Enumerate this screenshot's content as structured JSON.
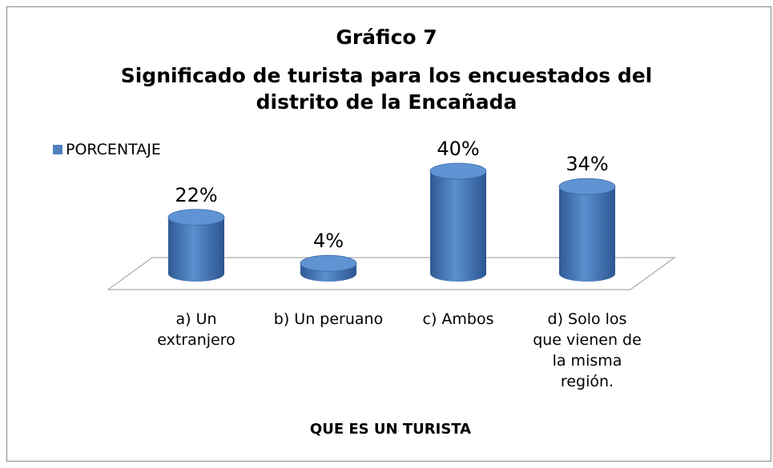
{
  "chart_data": {
    "type": "bar3d",
    "title": "Gráfico 7",
    "subtitle": "Significado de turista para los encuestados del distrito de la Encañada",
    "x_label": "QUE ES UN TURISTA",
    "categories": [
      "a) Un extranjero",
      "b) Un peruano",
      "c) Ambos",
      "d) Solo los que vienen de la misma región."
    ],
    "series": [
      {
        "name": "PORCENTAJE",
        "color": "#4f81bd",
        "values": [
          22,
          4,
          40,
          34
        ],
        "value_labels": [
          "22%",
          "4%",
          "40%",
          "34%"
        ]
      }
    ],
    "legend": "top-left"
  }
}
